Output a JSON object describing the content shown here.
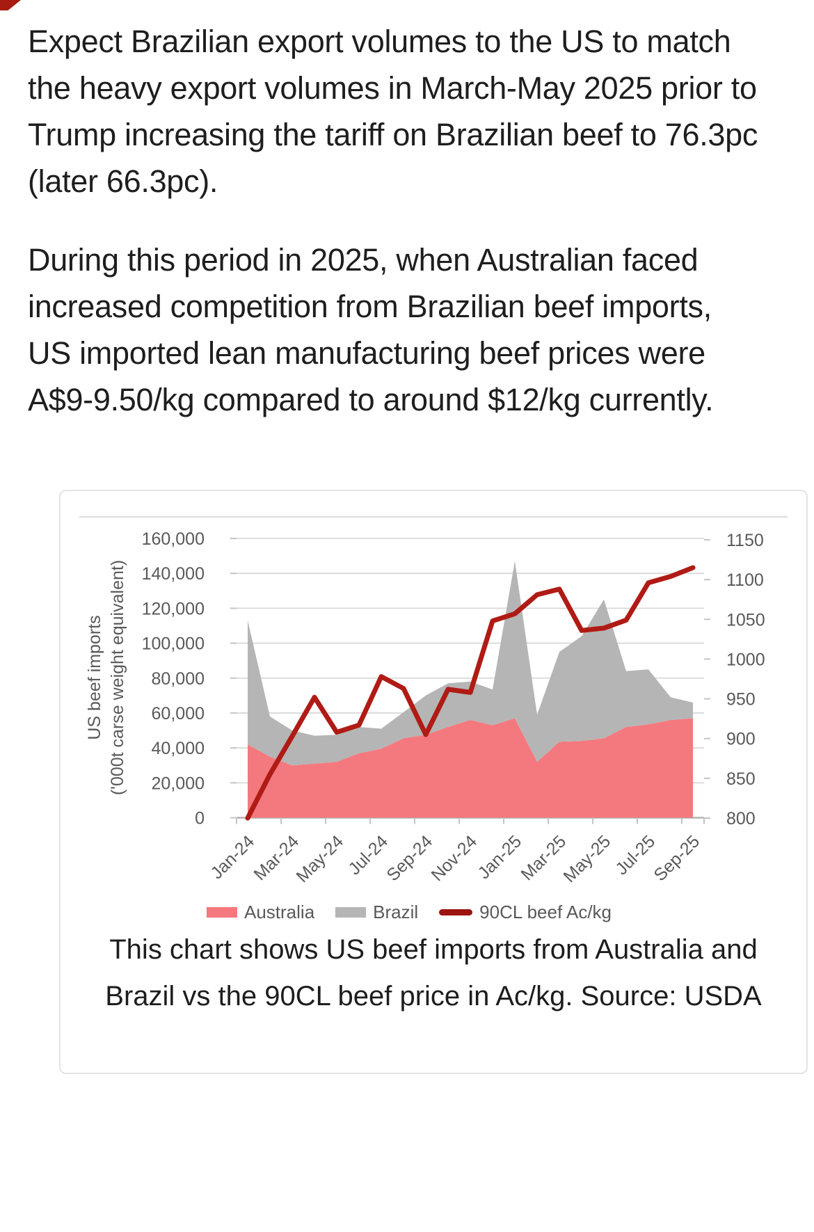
{
  "decor": {
    "corner_mark_color": "#a81b10"
  },
  "article": {
    "paragraphs": [
      "Expect Brazilian export volumes to the US to match the heavy export volumes in March-May 2025 prior to Trump increasing the tariff on Brazilian beef to 76.3pc (later 66.3pc).",
      "During this period in 2025, when Australian faced increased competition from Brazilian beef imports, US imported lean manufacturing beef prices were A$9-9.50/kg compared to around $12/kg currently."
    ]
  },
  "chart_data": {
    "type": "area",
    "stacked": true,
    "title": "",
    "x": [
      "Jan-24",
      "Feb-24",
      "Mar-24",
      "Apr-24",
      "May-24",
      "Jun-24",
      "Jul-24",
      "Aug-24",
      "Sep-24",
      "Oct-24",
      "Nov-24",
      "Dec-24",
      "Jan-25",
      "Feb-25",
      "Mar-25",
      "Apr-25",
      "May-25",
      "Jun-25",
      "Jul-25",
      "Aug-25",
      "Sep-25"
    ],
    "x_tick_labels": [
      "Jan-24",
      "Mar-24",
      "May-24",
      "Jul-24",
      "Sep-24",
      "Nov-24",
      "Jan-25",
      "Mar-25",
      "May-25",
      "Jul-25",
      "Sep-25"
    ],
    "series": [
      {
        "name": "Australia",
        "type": "area",
        "axis": "left",
        "color": "#f4797e",
        "values": [
          42000,
          35000,
          30000,
          31000,
          32000,
          37000,
          39500,
          45500,
          47500,
          52000,
          56000,
          53000,
          57000,
          32000,
          43500,
          44000,
          45500,
          52000,
          53500,
          56000,
          57000
        ]
      },
      {
        "name": "Brazil",
        "type": "area",
        "axis": "left",
        "color": "#b5b5b5",
        "values": [
          71000,
          23000,
          20000,
          16000,
          15500,
          15000,
          11500,
          15000,
          22500,
          25000,
          22000,
          20500,
          90000,
          27000,
          51500,
          60000,
          79500,
          32000,
          31500,
          13000,
          9000
        ]
      },
      {
        "name": "90CL beef Ac/kg",
        "type": "line",
        "axis": "right",
        "color": "#b01b15",
        "values": [
          800,
          855,
          903,
          952,
          908,
          917,
          978,
          963,
          905,
          962,
          958,
          1048,
          1057,
          1081,
          1088,
          1036,
          1039,
          1049,
          1096,
          1104,
          1115
        ]
      }
    ],
    "left_axis": {
      "title_line1": "US beef imports",
      "title_line2": "('000t carse weight equivalent)",
      "min": 0,
      "max": 160000,
      "step": 20000,
      "tick_labels": [
        "160,000",
        "140,000",
        "120,000",
        "100,000",
        "80,000",
        "60,000",
        "40,000",
        "20,000",
        "0"
      ]
    },
    "right_axis": {
      "min": 800,
      "max": 1150,
      "step": 50,
      "tick_labels": [
        "1150",
        "1100",
        "1050",
        "1000",
        "950",
        "900",
        "850",
        "800"
      ]
    },
    "legend": [
      {
        "label": "Australia",
        "swatch": "rect",
        "color": "#f4797e"
      },
      {
        "label": "Brazil",
        "swatch": "rect",
        "color": "#b5b5b5"
      },
      {
        "label": "90CL beef Ac/kg",
        "swatch": "line",
        "color": "#9c1410"
      }
    ],
    "grid": true,
    "legend_position": "bottom"
  },
  "caption": {
    "text": "This chart shows US beef imports from Australia and Brazil vs the 90CL beef price in Ac/kg. Source: USDA"
  },
  "colors": {
    "gridline": "#d9d9d9",
    "axis_line": "#b3b3b3",
    "tick": "#c4c4c4",
    "axis_text": "#595959",
    "divider": "#dcdcdc"
  }
}
